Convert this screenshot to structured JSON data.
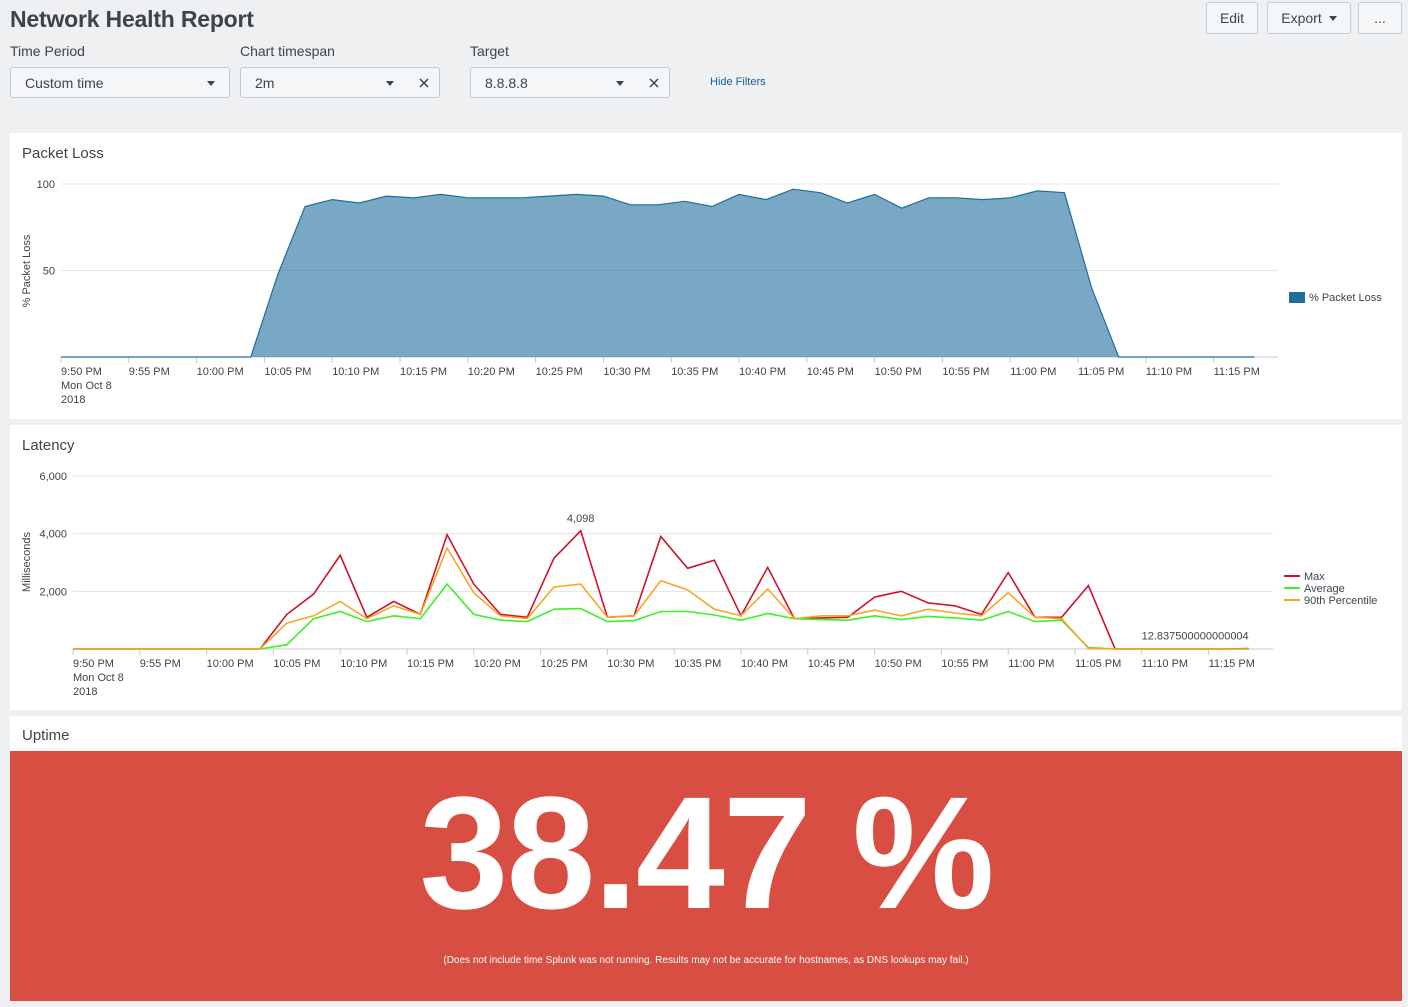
{
  "header": {
    "title": "Network Health Report",
    "edit_label": "Edit",
    "export_label": "Export",
    "more_label": "..."
  },
  "filters": {
    "time_period": {
      "label": "Time Period",
      "value": "Custom time"
    },
    "chart_timespan": {
      "label": "Chart timespan",
      "value": "2m"
    },
    "target": {
      "label": "Target",
      "value": "8.8.8.8"
    },
    "hide_filters_label": "Hide Filters"
  },
  "packet_loss": {
    "title": "Packet Loss",
    "chart_data": {
      "type": "area",
      "ylabel": "% Packet Loss",
      "ylim": [
        0,
        100
      ],
      "yticks": [
        50,
        100
      ],
      "x_tick_labels": [
        "9:50 PM",
        "9:55 PM",
        "10:00 PM",
        "10:05 PM",
        "10:10 PM",
        "10:15 PM",
        "10:20 PM",
        "10:25 PM",
        "10:30 PM",
        "10:35 PM",
        "10:40 PM",
        "10:45 PM",
        "10:50 PM",
        "10:55 PM",
        "11:00 PM",
        "11:05 PM",
        "11:10 PM",
        "11:15 PM"
      ],
      "x_first_sublabel": [
        "Mon Oct 8",
        "2018"
      ],
      "x_minutes": [
        0,
        2,
        4,
        6,
        8,
        10,
        12,
        14,
        16,
        18,
        20,
        22,
        24,
        26,
        28,
        30,
        32,
        34,
        36,
        38,
        40,
        42,
        44,
        46,
        48,
        50,
        52,
        54,
        56,
        58,
        60,
        62,
        64,
        66,
        68,
        70,
        72,
        74,
        76,
        78,
        80,
        82,
        84,
        86,
        88
      ],
      "series": [
        {
          "name": "% Packet Loss",
          "color": "#1e6e9d",
          "values": [
            0,
            0,
            0,
            0,
            0,
            0,
            0,
            0,
            48,
            87,
            91,
            89,
            93,
            92,
            94,
            92,
            92,
            92,
            93,
            94,
            93,
            88,
            88,
            90,
            87,
            94,
            91,
            97,
            95,
            89,
            94,
            86,
            92,
            92,
            91,
            92,
            96,
            95,
            40,
            0,
            0,
            0,
            0,
            0,
            0
          ]
        }
      ],
      "legend": "right"
    }
  },
  "latency": {
    "title": "Latency",
    "chart_data": {
      "type": "line",
      "ylabel": "Milliseconds",
      "ylim": [
        0,
        6000
      ],
      "yticks": [
        2000,
        4000,
        6000
      ],
      "ytick_labels": [
        "2,000",
        "4,000",
        "6,000"
      ],
      "x_tick_labels": [
        "9:50 PM",
        "9:55 PM",
        "10:00 PM",
        "10:05 PM",
        "10:10 PM",
        "10:15 PM",
        "10:20 PM",
        "10:25 PM",
        "10:30 PM",
        "10:35 PM",
        "10:40 PM",
        "10:45 PM",
        "10:50 PM",
        "10:55 PM",
        "11:00 PM",
        "11:05 PM",
        "11:10 PM",
        "11:15 PM"
      ],
      "x_first_sublabel": [
        "Mon Oct 8",
        "2018"
      ],
      "x_minutes": [
        0,
        2,
        4,
        6,
        8,
        10,
        12,
        14,
        16,
        18,
        20,
        22,
        24,
        26,
        28,
        30,
        32,
        34,
        36,
        38,
        40,
        42,
        44,
        46,
        48,
        50,
        52,
        54,
        56,
        58,
        60,
        62,
        64,
        66,
        68,
        70,
        72,
        74,
        76,
        78,
        80,
        82,
        84,
        86,
        88
      ],
      "series": [
        {
          "name": "Max",
          "color": "#d0112b",
          "values": [
            0,
            0,
            0,
            0,
            0,
            0,
            0,
            0,
            1200,
            1900,
            3250,
            1100,
            1650,
            1200,
            3960,
            2250,
            1200,
            1100,
            3150,
            4098,
            1100,
            1150,
            3900,
            2800,
            3080,
            1150,
            2830,
            1050,
            1080,
            1100,
            1800,
            2000,
            1600,
            1500,
            1200,
            2650,
            1100,
            1100,
            2200,
            0,
            0,
            0,
            0,
            0,
            12.837500000000004
          ]
        },
        {
          "name": "Average",
          "color": "#3ef024",
          "values": [
            0,
            0,
            0,
            0,
            0,
            0,
            0,
            0,
            150,
            1050,
            1300,
            950,
            1150,
            1050,
            2250,
            1200,
            1000,
            950,
            1380,
            1400,
            950,
            980,
            1300,
            1300,
            1180,
            1000,
            1230,
            1050,
            1020,
            1000,
            1150,
            1020,
            1130,
            1080,
            1000,
            1300,
            950,
            1000,
            50,
            0,
            0,
            0,
            0,
            0,
            0
          ]
        },
        {
          "name": "90th Percentile",
          "color": "#f8a626",
          "values": [
            0,
            0,
            0,
            0,
            0,
            0,
            0,
            0,
            900,
            1150,
            1650,
            1050,
            1500,
            1200,
            3500,
            1950,
            1150,
            1050,
            2150,
            2250,
            1100,
            1150,
            2370,
            2050,
            1380,
            1150,
            2080,
            1050,
            1150,
            1150,
            1350,
            1150,
            1380,
            1250,
            1150,
            1950,
            1100,
            1050,
            20,
            0,
            0,
            0,
            0,
            0,
            0
          ]
        }
      ],
      "annotations": [
        {
          "series": "Max",
          "index": 19,
          "text": "4,098"
        },
        {
          "series": "Max",
          "index": 44,
          "text": "12.837500000000004"
        }
      ],
      "legend": "right"
    }
  },
  "uptime": {
    "title": "Uptime",
    "value": "38.47 %",
    "note": "(Does not include time Splunk was not running. Results may not be accurate for hostnames, as DNS lookups may fail.)",
    "background_color": "#d84e43"
  }
}
